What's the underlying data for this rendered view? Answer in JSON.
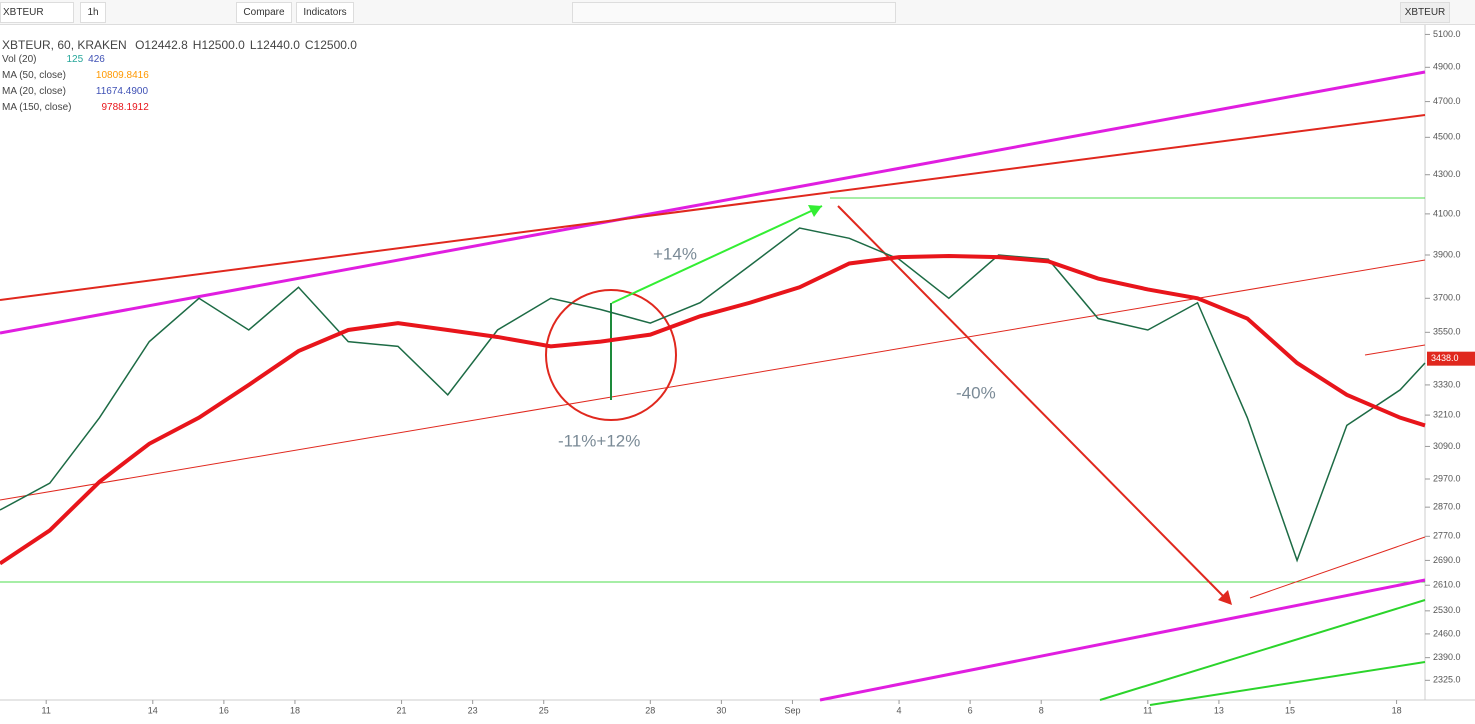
{
  "toolbar": {
    "symbol": "XBTEUR",
    "interval": "1h",
    "compare": "Compare",
    "indicators": "Indicators",
    "right_symbol": "XBTEUR"
  },
  "legend": {
    "title": "XBTEUR, 60, KRAKEN",
    "open": "O12442.8",
    "high": "H12500.0",
    "low": "L12440.0",
    "close": "C12500.0",
    "rows": [
      {
        "name": "Vol (20)",
        "values": [
          "125",
          "426"
        ]
      },
      {
        "name": "MA (50, close)",
        "values": [
          "10809.8416"
        ]
      },
      {
        "name": "MA (20, close)",
        "values": [
          "11674.4900"
        ]
      },
      {
        "name": "MA (150, close)",
        "values": [
          "9788.1912"
        ]
      }
    ]
  },
  "annotations": {
    "gain": "+14%",
    "drop": "-40%",
    "wick": "-11%+12%"
  },
  "chart_data": {
    "type": "line",
    "log_scale": true,
    "ylim": [
      2270,
      5140
    ],
    "yticks": [
      {
        "value": 5100,
        "label": "5100.0"
      },
      {
        "value": 4900,
        "label": "4900.0"
      },
      {
        "value": 4700,
        "label": "4700.0"
      },
      {
        "value": 4500,
        "label": "4500.0"
      },
      {
        "value": 4300,
        "label": "4300.0"
      },
      {
        "value": 4100,
        "label": "4100.0"
      },
      {
        "value": 3900,
        "label": "3900.0"
      },
      {
        "value": 3700,
        "label": "3700.0"
      },
      {
        "value": 3550,
        "label": "3550.0"
      },
      {
        "value": 3330,
        "label": "3330.0"
      },
      {
        "value": 3210,
        "label": "3210.0"
      },
      {
        "value": 3090,
        "label": "3090.0"
      },
      {
        "value": 2970,
        "label": "2970.0"
      },
      {
        "value": 2870,
        "label": "2870.0"
      },
      {
        "value": 2770,
        "label": "2770.0"
      },
      {
        "value": 2690,
        "label": "2690.0"
      },
      {
        "value": 2610,
        "label": "2610.0"
      },
      {
        "value": 2530,
        "label": "2530.0"
      },
      {
        "value": 2460,
        "label": "2460.0"
      },
      {
        "value": 2390,
        "label": "2390.0"
      },
      {
        "value": 2325,
        "label": "2325.0"
      }
    ],
    "last_price": {
      "value": 3438,
      "label": "3438.0"
    },
    "xlim": [
      -1.3,
      38.8
    ],
    "xticks": [
      {
        "value": 0,
        "label": "11"
      },
      {
        "value": 3,
        "label": "14"
      },
      {
        "value": 5,
        "label": "16"
      },
      {
        "value": 7,
        "label": "18"
      },
      {
        "value": 10,
        "label": "21"
      },
      {
        "value": 12,
        "label": "23"
      },
      {
        "value": 14,
        "label": "25"
      },
      {
        "value": 17,
        "label": "28"
      },
      {
        "value": 19,
        "label": "30"
      },
      {
        "value": 21,
        "label": "Sep"
      },
      {
        "value": 24,
        "label": "4"
      },
      {
        "value": 26,
        "label": "6"
      },
      {
        "value": 28,
        "label": "8"
      },
      {
        "value": 31,
        "label": "11"
      },
      {
        "value": 33,
        "label": "13"
      },
      {
        "value": 35,
        "label": "15"
      },
      {
        "value": 38,
        "label": "18"
      }
    ],
    "x": [
      -1.3,
      0.1,
      1.5,
      2.9,
      4.3,
      5.7,
      7.1,
      8.5,
      9.9,
      11.3,
      12.7,
      14.2,
      15.6,
      17.0,
      18.4,
      19.8,
      21.2,
      22.6,
      24.0,
      25.4,
      26.8,
      28.2,
      29.6,
      31.0,
      32.4,
      33.8,
      35.2,
      36.6,
      38.1,
      38.8
    ],
    "series": [
      {
        "name": "Close",
        "color": "#1d6b45",
        "values": [
          2860,
          2955,
          3200,
          3510,
          3700,
          3560,
          3750,
          3510,
          3490,
          3290,
          3560,
          3700,
          3650,
          3590,
          3680,
          3850,
          4030,
          3980,
          3880,
          3700,
          3900,
          3880,
          3610,
          3560,
          3680,
          3200,
          2690,
          3170,
          3310,
          3420
        ]
      },
      {
        "name": "MA (150, close)",
        "color": "#e8151b",
        "values": [
          2680,
          2790,
          2960,
          3100,
          3200,
          3330,
          3470,
          3560,
          3590,
          3560,
          3530,
          3490,
          3510,
          3540,
          3620,
          3680,
          3750,
          3860,
          3890,
          3895,
          3890,
          3870,
          3790,
          3740,
          3700,
          3610,
          3420,
          3290,
          3200,
          3170
        ]
      }
    ]
  }
}
